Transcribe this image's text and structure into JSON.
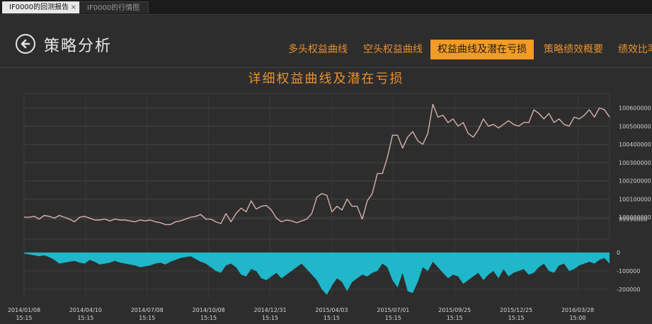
{
  "tabs": [
    {
      "label": "IF0000的回测报告",
      "close": "×"
    },
    {
      "label": "IF0000的行情图"
    }
  ],
  "header": {
    "title": "策略分析",
    "back_icon": "back-arrow-icon"
  },
  "nav": [
    {
      "label": "多头权益曲线"
    },
    {
      "label": "空头权益曲线"
    },
    {
      "label": "权益曲线及潜在亏损",
      "active": true
    },
    {
      "label": "策略绩效概要"
    },
    {
      "label": "绩效比率"
    }
  ],
  "colors": {
    "accent": "#f29b25",
    "equity_line": "#d8b0b0",
    "drawdown_fill": "#1fb7c9",
    "background": "#2d2d2d"
  },
  "chart_data": {
    "type": "line",
    "title": "详细权益曲线及潜在亏损",
    "x_labels": [
      [
        "2014/01/08",
        "15:15"
      ],
      [
        "2014/04/10",
        "15:15"
      ],
      [
        "2014/07/08",
        "15:15"
      ],
      [
        "2014/10/08",
        "15:15"
      ],
      [
        "2014/12/31",
        "15:15"
      ],
      [
        "2015/04/03",
        "15:15"
      ],
      [
        "2015/07/01",
        "15:15"
      ],
      [
        "2015/09/25",
        "15:15"
      ],
      [
        "2015/12/25",
        "15:15"
      ],
      [
        "2016/03/28",
        "15:00"
      ]
    ],
    "equity": {
      "y_ticks": [
        "100600000",
        "100500000",
        "100400000",
        "100300000",
        "100200000",
        "100100000",
        "100000000",
        "99990000"
      ],
      "ylim": [
        99880000,
        100680000
      ],
      "values": [
        100000000,
        100000000,
        100005000,
        99990000,
        100010000,
        100005000,
        99995000,
        100010000,
        100000000,
        99990000,
        99975000,
        100000000,
        100005000,
        99995000,
        99985000,
        99985000,
        99990000,
        99980000,
        99990000,
        99985000,
        99985000,
        99980000,
        99975000,
        99985000,
        99980000,
        99985000,
        99975000,
        99970000,
        99960000,
        99960000,
        99975000,
        99980000,
        99990000,
        100000000,
        100005000,
        100015000,
        99990000,
        99990000,
        99975000,
        99965000,
        100020000,
        99975000,
        100020000,
        100050000,
        100030000,
        100090000,
        100045000,
        100060000,
        100065000,
        100040000,
        99995000,
        99975000,
        99985000,
        99980000,
        99970000,
        99980000,
        99990000,
        100020000,
        100110000,
        100130000,
        100120000,
        100030000,
        100060000,
        100040000,
        100100000,
        100060000,
        100060000,
        99990000,
        100090000,
        100130000,
        100240000,
        100240000,
        100330000,
        100450000,
        100450000,
        100380000,
        100440000,
        100470000,
        100420000,
        100400000,
        100460000,
        100620000,
        100550000,
        100560000,
        100520000,
        100540000,
        100500000,
        100520000,
        100460000,
        100440000,
        100480000,
        100540000,
        100500000,
        100510000,
        100490000,
        100510000,
        100530000,
        100510000,
        100500000,
        100520000,
        100520000,
        100590000,
        100570000,
        100540000,
        100570000,
        100520000,
        100540000,
        100510000,
        100500000,
        100550000,
        100540000,
        100560000,
        100590000,
        100550000,
        100600000,
        100590000,
        100550000
      ]
    },
    "drawdown": {
      "y_ticks": [
        "0",
        "-100000",
        "-200000"
      ],
      "ylim": [
        -250000,
        0
      ],
      "values": [
        -5000,
        -10000,
        -15000,
        -20000,
        -15000,
        -25000,
        -40000,
        -60000,
        -55000,
        -50000,
        -45000,
        -55000,
        -60000,
        -40000,
        -50000,
        -65000,
        -60000,
        -55000,
        -45000,
        -55000,
        -60000,
        -65000,
        -70000,
        -80000,
        -75000,
        -70000,
        -60000,
        -55000,
        -65000,
        -50000,
        -40000,
        -30000,
        -25000,
        -20000,
        -35000,
        -50000,
        -60000,
        -80000,
        -100000,
        -110000,
        -70000,
        -60000,
        -80000,
        -120000,
        -130000,
        -90000,
        -100000,
        -140000,
        -150000,
        -130000,
        -110000,
        -140000,
        -120000,
        -100000,
        -80000,
        -60000,
        -90000,
        -120000,
        -150000,
        -200000,
        -230000,
        -180000,
        -140000,
        -160000,
        -210000,
        -160000,
        -140000,
        -120000,
        -130000,
        -110000,
        -100000,
        -60000,
        -80000,
        -150000,
        -190000,
        -110000,
        -210000,
        -220000,
        -160000,
        -80000,
        -100000,
        -50000,
        -80000,
        -110000,
        -140000,
        -120000,
        -130000,
        -170000,
        -150000,
        -130000,
        -110000,
        -150000,
        -120000,
        -100000,
        -140000,
        -90000,
        -130000,
        -110000,
        -100000,
        -90000,
        -120000,
        -110000,
        -80000,
        -60000,
        -100000,
        -110000,
        -70000,
        -60000,
        -100000,
        -90000,
        -70000,
        -60000,
        -50000,
        -60000,
        -40000,
        -30000,
        -60000
      ]
    }
  }
}
